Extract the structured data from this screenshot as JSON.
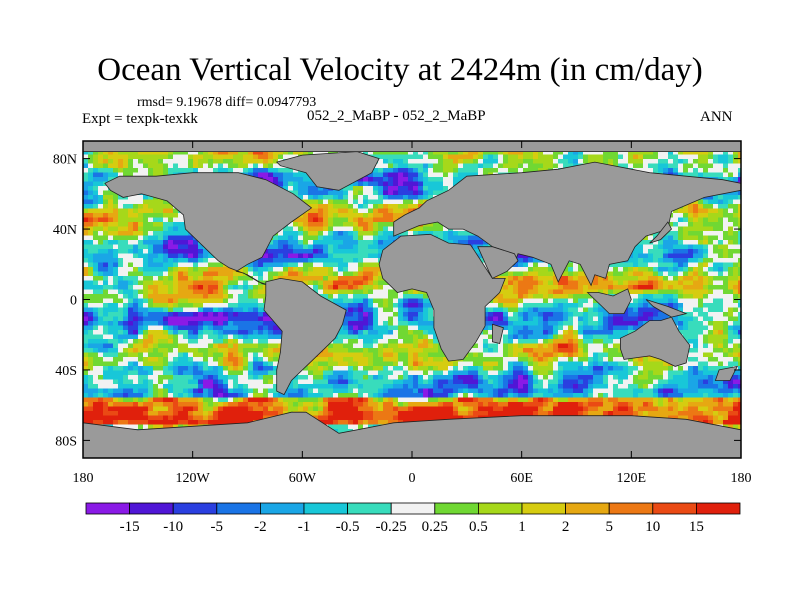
{
  "chart_data": {
    "type": "heatmap",
    "title": "Ocean Vertical Velocity at 2424m (in cm/day)",
    "stats_text": "rmsd= 9.19678 diff= 0.0947793",
    "left_label": "Expt = texpk-texkk",
    "center_label": "052_2_MaBP - 052_2_MaBP",
    "right_label": "ANN",
    "x_ticks": [
      {
        "value": -180,
        "label": "180"
      },
      {
        "value": -120,
        "label": "120W"
      },
      {
        "value": -60,
        "label": "60W"
      },
      {
        "value": 0,
        "label": "0"
      },
      {
        "value": 60,
        "label": "60E"
      },
      {
        "value": 120,
        "label": "120E"
      },
      {
        "value": 180,
        "label": "180"
      }
    ],
    "y_ticks": [
      {
        "value": 80,
        "label": "80N"
      },
      {
        "value": 40,
        "label": "40N"
      },
      {
        "value": 0,
        "label": "0"
      },
      {
        "value": -40,
        "label": "40S"
      },
      {
        "value": -80,
        "label": "80S"
      }
    ],
    "xlim": [
      -180,
      180
    ],
    "ylim": [
      -90,
      90
    ],
    "colorbar": {
      "colors": [
        "#8a1ae6",
        "#5016d6",
        "#2a3fe0",
        "#1a74e6",
        "#1aa6e6",
        "#18c7d8",
        "#38dcbc",
        "#f2f2f2",
        "#70d833",
        "#a6d81a",
        "#d6cc10",
        "#e6a812",
        "#ec7814",
        "#ea4a14",
        "#e0200c"
      ],
      "labels": [
        "-15",
        "-10",
        "-5",
        "-2",
        "-1",
        "-0.5",
        "-0.25",
        "0.25",
        "0.5",
        "1",
        "2",
        "5",
        "10",
        "15"
      ]
    },
    "land_color": "#9a9a9a"
  }
}
